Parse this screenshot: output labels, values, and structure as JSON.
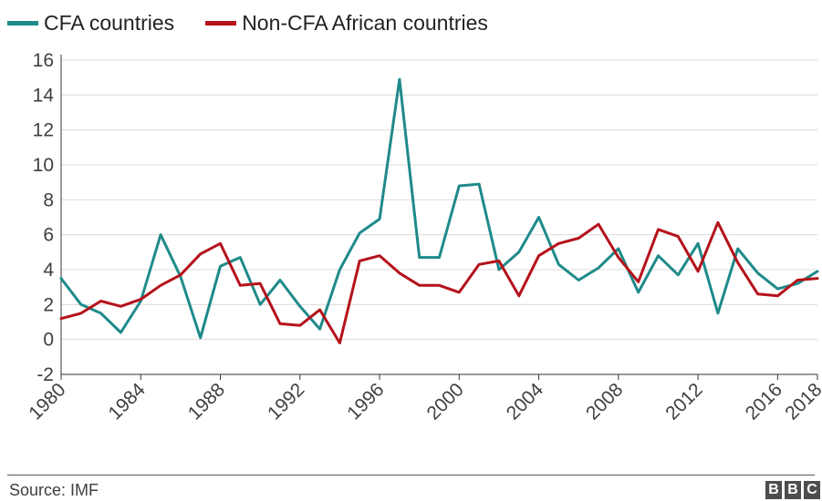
{
  "chart_data": {
    "type": "line",
    "title": "",
    "xlabel": "",
    "ylabel": "",
    "xlim": [
      1980,
      2018
    ],
    "ylim": [
      -2,
      16
    ],
    "yticks": [
      -2,
      0,
      2,
      4,
      6,
      8,
      10,
      12,
      14,
      16
    ],
    "xticks": [
      1980,
      1984,
      1988,
      1992,
      1996,
      2000,
      2004,
      2008,
      2012,
      2016,
      2018
    ],
    "grid": "horizontal",
    "legend": "top-left",
    "x": [
      1980,
      1981,
      1982,
      1983,
      1984,
      1985,
      1986,
      1987,
      1988,
      1989,
      1990,
      1991,
      1992,
      1993,
      1994,
      1995,
      1996,
      1997,
      1998,
      1999,
      2000,
      2001,
      2002,
      2003,
      2004,
      2005,
      2006,
      2007,
      2008,
      2009,
      2010,
      2011,
      2012,
      2013,
      2014,
      2015,
      2016,
      2017,
      2018
    ],
    "series": [
      {
        "name": "CFA countries",
        "color": "#1f8a8a",
        "values": [
          3.5,
          2.0,
          1.5,
          0.4,
          2.2,
          6.0,
          3.6,
          0.1,
          4.2,
          4.7,
          2.0,
          3.4,
          1.9,
          0.6,
          4.0,
          6.1,
          6.9,
          14.9,
          4.7,
          4.7,
          8.8,
          8.9,
          4.0,
          5.0,
          7.0,
          4.3,
          3.4,
          4.1,
          5.2,
          2.7,
          4.8,
          3.7,
          5.5,
          1.5,
          5.2,
          3.8,
          2.9,
          3.2,
          3.9
        ]
      },
      {
        "name": "Non-CFA African countries",
        "color": "#b5121b",
        "values": [
          1.2,
          1.5,
          2.2,
          1.9,
          2.3,
          3.1,
          3.7,
          4.9,
          5.5,
          3.1,
          3.2,
          0.9,
          0.8,
          1.7,
          -0.2,
          4.5,
          4.8,
          3.8,
          3.1,
          3.1,
          2.7,
          4.3,
          4.5,
          2.5,
          4.8,
          5.5,
          5.8,
          6.6,
          4.7,
          3.3,
          6.3,
          5.9,
          3.9,
          6.7,
          4.4,
          2.6,
          2.5,
          3.4,
          3.5
        ]
      }
    ]
  },
  "footer": {
    "source": "Source: IMF",
    "logo_letters": [
      "B",
      "B",
      "C"
    ]
  }
}
